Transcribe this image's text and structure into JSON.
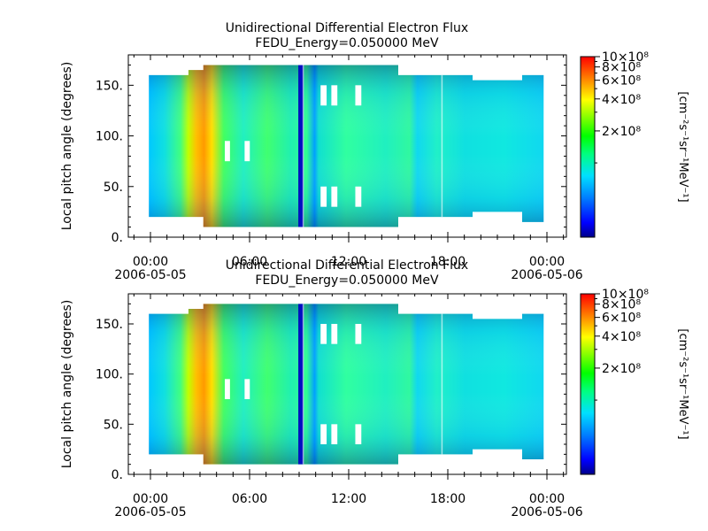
{
  "chart_data": [
    {
      "type": "heatmap",
      "title": "Unidirectional Differential Electron Flux",
      "subtitle": "FEDU_Energy=0.050000 MeV",
      "xlabel": "",
      "ylabel": "Local pitch angle (degrees)",
      "xlim": [
        "2006-05-04 23:10",
        "2006-05-06 00:40"
      ],
      "ylim": [
        0,
        180
      ],
      "x_ticks": [
        {
          "t": 0,
          "label": "00:00",
          "label2": "2006-05-05"
        },
        {
          "t": 6,
          "label": "06:00",
          "label2": ""
        },
        {
          "t": 12,
          "label": "12:00",
          "label2": ""
        },
        {
          "t": 18,
          "label": "18:00",
          "label2": ""
        },
        {
          "t": 24,
          "label": "00:00",
          "label2": "2006-05-06"
        }
      ],
      "y_ticks": [
        "0.",
        "50.",
        "100.",
        "150."
      ],
      "y_tick_values": [
        0,
        50,
        100,
        150
      ],
      "colorbar": {
        "label": "[cm⁻²s⁻¹sr⁻¹MeV⁻¹]",
        "scale": "log",
        "range": [
          20000000.0,
          1000000000.0
        ],
        "tick_labels": [
          "10×10⁸",
          "8×10⁸",
          "6×10⁸",
          "4×10⁸",
          "2×10⁸"
        ],
        "tick_values": [
          1000000000.0,
          800000000.0,
          600000000.0,
          400000000.0,
          200000000.0
        ],
        "colormap": [
          "#00008b",
          "#0000ff",
          "#0080ff",
          "#00e0ff",
          "#00ff80",
          "#00ff00",
          "#80ff00",
          "#ffff00",
          "#ff8000",
          "#ff0000"
        ]
      },
      "series_time_hours": [
        -0.1,
        0.8,
        1.5,
        2.3,
        3.2,
        3.6,
        4.5,
        6.0,
        7.0,
        8.0,
        8.8,
        9.1,
        9.6,
        10.3,
        11.3,
        12.5,
        13.8,
        15.0,
        16.2,
        17.5,
        19.5,
        21.0,
        22.5,
        23.6
      ],
      "coverage_deg": [
        [
          20,
          160
        ],
        [
          20,
          160
        ],
        [
          20,
          160
        ],
        [
          20,
          165
        ],
        [
          10,
          170
        ],
        [
          10,
          170
        ],
        [
          10,
          170
        ],
        [
          10,
          170
        ],
        [
          10,
          170
        ],
        [
          10,
          170
        ],
        [
          10,
          170
        ],
        [
          10,
          170
        ],
        [
          10,
          170
        ],
        [
          10,
          170
        ],
        [
          10,
          170
        ],
        [
          10,
          170
        ],
        [
          10,
          170
        ],
        [
          20,
          160
        ],
        [
          20,
          160
        ],
        [
          20,
          160
        ],
        [
          25,
          155
        ],
        [
          25,
          155
        ],
        [
          15,
          160
        ],
        [
          15,
          160
        ]
      ]
    },
    {
      "type": "heatmap",
      "title": "Unidirectional Differential Electron Flux",
      "subtitle": "FEDU_Energy=0.050000 MeV",
      "xlabel": "",
      "ylabel": "Local pitch angle (degrees)",
      "xlim": [
        "2006-05-04 23:10",
        "2006-05-06 00:40"
      ],
      "ylim": [
        0,
        180
      ],
      "x_ticks": [
        {
          "t": 0,
          "label": "00:00",
          "label2": "2006-05-05"
        },
        {
          "t": 6,
          "label": "06:00",
          "label2": ""
        },
        {
          "t": 12,
          "label": "12:00",
          "label2": ""
        },
        {
          "t": 18,
          "label": "18:00",
          "label2": ""
        },
        {
          "t": 24,
          "label": "00:00",
          "label2": "2006-05-06"
        }
      ],
      "y_ticks": [
        "0.",
        "50.",
        "100.",
        "150."
      ],
      "y_tick_values": [
        0,
        50,
        100,
        150
      ],
      "colorbar": {
        "label": "[cm⁻²s⁻¹sr⁻¹MeV⁻¹]",
        "scale": "log",
        "range": [
          20000000.0,
          1000000000.0
        ],
        "tick_labels": [
          "10×10⁸",
          "8×10⁸",
          "6×10⁸",
          "4×10⁸",
          "2×10⁸"
        ],
        "tick_values": [
          1000000000.0,
          800000000.0,
          600000000.0,
          400000000.0,
          200000000.0
        ],
        "colormap": [
          "#00008b",
          "#0000ff",
          "#0080ff",
          "#00e0ff",
          "#00ff80",
          "#00ff00",
          "#80ff00",
          "#ffff00",
          "#ff8000",
          "#ff0000"
        ]
      }
    }
  ]
}
